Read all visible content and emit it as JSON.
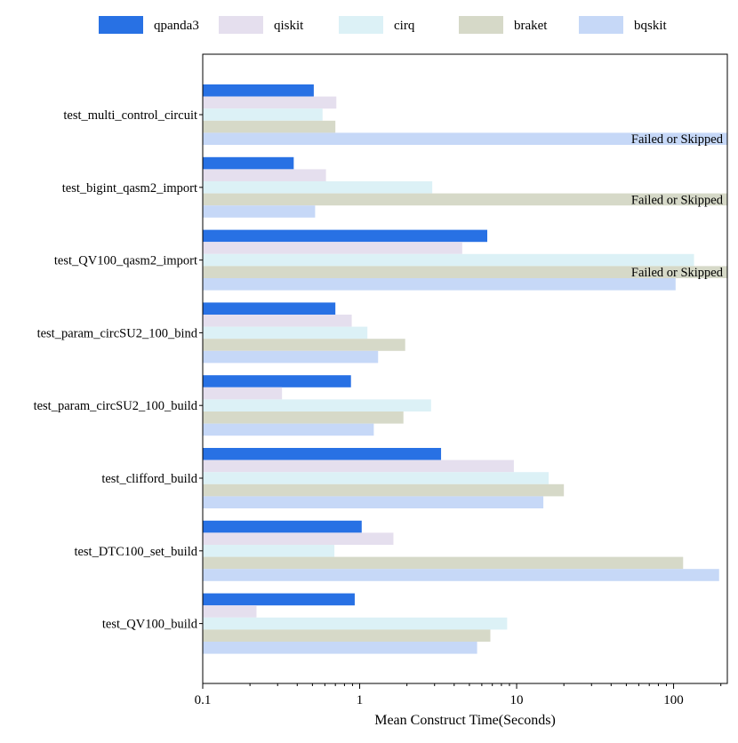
{
  "chart_data": {
    "type": "bar",
    "orientation": "horizontal",
    "x_scale": "log",
    "xlim": [
      0.1,
      220
    ],
    "xlabel": "Mean Construct Time(Seconds)",
    "ylabel": "",
    "grid": false,
    "legend_position": "top",
    "x_ticks": [
      {
        "value": 0.1,
        "label": "0.1"
      },
      {
        "value": 1,
        "label": "1"
      },
      {
        "value": 10,
        "label": "10"
      },
      {
        "value": 100,
        "label": "100"
      }
    ],
    "categories": [
      "test_multi_control_circuit",
      "test_bigint_qasm2_import",
      "test_QV100_qasm2_import",
      "test_param_circSU2_100_bind",
      "test_param_circSU2_100_build",
      "test_clifford_build",
      "test_DTC100_set_build",
      "test_QV100_build"
    ],
    "failed_label": "Failed or Skipped",
    "series": [
      {
        "name": "qpanda3",
        "color": "#2871e4",
        "values": [
          0.51,
          0.38,
          6.5,
          0.7,
          0.88,
          3.3,
          1.03,
          0.93
        ]
      },
      {
        "name": "qiskit",
        "color": "#e5dfee",
        "values": [
          0.71,
          0.61,
          4.5,
          0.89,
          0.32,
          9.6,
          1.64,
          0.22
        ]
      },
      {
        "name": "cirq",
        "color": "#dcf1f6",
        "values": [
          0.58,
          2.9,
          135,
          1.12,
          2.85,
          16,
          0.69,
          8.7
        ]
      },
      {
        "name": "braket",
        "color": "#d6d9c8",
        "values": [
          0.7,
          null,
          null,
          1.95,
          1.9,
          20,
          115,
          6.8
        ]
      },
      {
        "name": "bqskit",
        "color": "#c6d8f7",
        "values": [
          null,
          0.52,
          103,
          1.31,
          1.23,
          14.8,
          195,
          5.6
        ]
      }
    ]
  }
}
